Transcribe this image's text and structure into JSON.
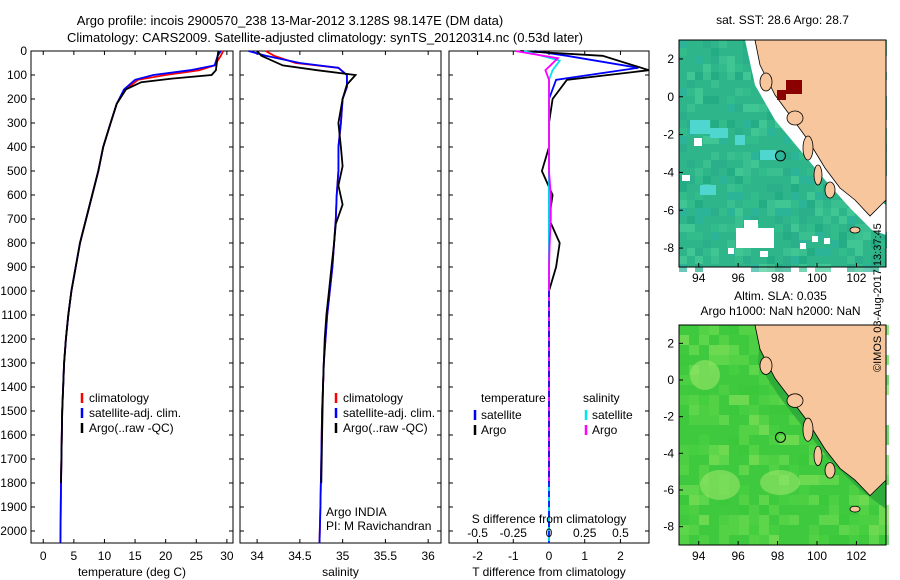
{
  "header": {
    "line1": "Argo profile: incois 2900570_238 13-Mar-2012 3.128S 98.147E (DM data)",
    "line2": "Climatology: CARS2009. Satellite-adjusted climatology: synTS_20120314.nc (0.53d later)"
  },
  "credit": "©IMOS 03-Aug-2017 13:37:45",
  "colors": {
    "climatology": "#ff0000",
    "satellite": "#0000ff",
    "argo": "#000000",
    "sat_s": "#00e5ee",
    "argo_s": "#ff00ff",
    "land": "#f7c69c"
  },
  "chart_data": [
    {
      "type": "line",
      "xlabel": "temperature (deg C)",
      "x_ticks": [
        "0",
        "5",
        "10",
        "15",
        "20",
        "25",
        "30"
      ],
      "xlim": [
        -2,
        31
      ],
      "ylim": [
        2050,
        0
      ],
      "y_ticks": [
        "0",
        "100",
        "200",
        "300",
        "400",
        "500",
        "600",
        "700",
        "800",
        "900",
        "1000",
        "1100",
        "1200",
        "1300",
        "1400",
        "1500",
        "1600",
        "1700",
        "1800",
        "1900",
        "2000"
      ],
      "legend": [
        "climatology",
        "satellite-adj. clim.",
        "Argo(..raw -QC)"
      ],
      "series": [
        {
          "name": "climatology",
          "color": "#ff0000",
          "x": [
            29.4,
            29.0,
            28.0,
            25.5,
            20.0,
            15.5,
            13.5,
            12.0,
            11.0,
            9.8,
            9.0,
            8.0,
            7.0,
            6.0,
            5.3,
            4.6,
            4.1,
            3.7,
            3.4,
            3.1,
            2.9,
            2.8
          ],
          "y": [
            0,
            20,
            60,
            80,
            100,
            120,
            160,
            220,
            300,
            400,
            500,
            600,
            700,
            800,
            900,
            1000,
            1100,
            1200,
            1300,
            1500,
            1800,
            2050
          ]
        },
        {
          "name": "satellite-adj. clim.",
          "color": "#0000ff",
          "x": [
            29.0,
            28.5,
            28.0,
            24.0,
            18.0,
            15.0,
            13.2,
            12.0,
            11.0,
            9.8,
            9.0,
            8.0,
            7.0,
            6.0,
            5.3,
            4.6,
            4.1,
            3.7,
            3.4,
            3.1,
            2.9,
            2.8
          ],
          "y": [
            0,
            20,
            60,
            80,
            100,
            120,
            160,
            220,
            300,
            400,
            500,
            600,
            700,
            800,
            900,
            1000,
            1100,
            1200,
            1300,
            1500,
            1800,
            2050
          ]
        },
        {
          "name": "Argo(..raw -QC)",
          "color": "#000000",
          "x": [
            28.6,
            28.4,
            28.2,
            27.5,
            21.0,
            16.0,
            13.5,
            12.0,
            11.0,
            9.8,
            9.0,
            8.0,
            7.0,
            6.0,
            5.3,
            4.6,
            4.1,
            3.7,
            3.4,
            3.1,
            2.9
          ],
          "y": [
            0,
            40,
            80,
            100,
            115,
            130,
            160,
            220,
            300,
            400,
            500,
            600,
            700,
            800,
            900,
            1000,
            1100,
            1200,
            1300,
            1500,
            1800
          ]
        }
      ]
    },
    {
      "type": "line",
      "xlabel": "salinity",
      "x_ticks": [
        "34",
        "34.5",
        "35",
        "35.5",
        "36"
      ],
      "xlim": [
        33.8,
        36.15
      ],
      "ylim": [
        2050,
        0
      ],
      "legend": [
        "climatology",
        "satellite-adj. clim.",
        "Argo(..raw -QC)"
      ],
      "annotation": [
        "Argo INDIA",
        "PI: M Ravichandran"
      ],
      "series": [
        {
          "name": "climatology",
          "color": "#ff0000",
          "x": [
            34.1,
            34.2,
            34.45,
            34.95,
            35.05,
            35.05,
            35.0,
            34.98,
            34.95,
            34.95,
            34.93,
            34.92,
            34.9,
            34.88,
            34.85,
            34.82,
            34.8,
            34.78,
            34.77,
            34.76,
            34.75,
            34.74,
            34.73
          ],
          "y": [
            0,
            20,
            50,
            70,
            100,
            150,
            200,
            300,
            400,
            500,
            600,
            700,
            800,
            900,
            1000,
            1100,
            1200,
            1300,
            1400,
            1500,
            1700,
            1900,
            2050
          ]
        },
        {
          "name": "satellite-adj. clim.",
          "color": "#0000ff",
          "x": [
            33.9,
            34.1,
            34.5,
            34.95,
            35.05,
            35.05,
            35.0,
            34.98,
            34.95,
            34.95,
            34.93,
            34.92,
            34.9,
            34.88,
            34.85,
            34.82,
            34.8,
            34.78,
            34.77,
            34.76,
            34.75,
            34.74,
            34.73
          ],
          "y": [
            0,
            20,
            50,
            70,
            100,
            150,
            200,
            300,
            400,
            500,
            600,
            700,
            800,
            900,
            1000,
            1100,
            1200,
            1300,
            1400,
            1500,
            1700,
            1900,
            2050
          ]
        },
        {
          "name": "Argo(..raw -QC)",
          "color": "#000000",
          "x": [
            34.0,
            34.05,
            34.3,
            34.7,
            35.15,
            35.05,
            35.0,
            34.95,
            34.98,
            35.0,
            34.95,
            35.0,
            34.92,
            34.9,
            34.87,
            34.84,
            34.81,
            34.79,
            34.78,
            34.77,
            34.76,
            34.75
          ],
          "y": [
            0,
            20,
            60,
            80,
            100,
            140,
            200,
            300,
            400,
            480,
            560,
            640,
            720,
            800,
            900,
            1000,
            1100,
            1200,
            1300,
            1400,
            1600,
            1800
          ]
        }
      ]
    },
    {
      "type": "line",
      "xlabel": "T difference from climatology",
      "x_ticks": [
        "-2",
        "-1",
        "0",
        "1",
        "2"
      ],
      "xlim": [
        -2.8,
        2.8
      ],
      "x2label": "S difference from climatology",
      "x2_ticks": [
        "-0.5",
        "-0.25",
        "0",
        "0.25",
        "0.5"
      ],
      "x2lim": [
        -0.7,
        0.7
      ],
      "ylim": [
        2050,
        0
      ],
      "legend_headers": [
        "temperature",
        "salinity"
      ],
      "legend": [
        "satellite",
        "Argo",
        "satellite",
        "Argo"
      ],
      "series": [
        {
          "name": "satellite",
          "color": "#0000ff",
          "x": [
            -0.4,
            0.5,
            2.5,
            0.2,
            0,
            0,
            0,
            0,
            0,
            0,
            0,
            0,
            0,
            0,
            0
          ],
          "y": [
            0,
            20,
            70,
            120,
            200,
            300,
            400,
            500,
            600,
            700,
            800,
            900,
            1000,
            1500,
            2050
          ]
        },
        {
          "name": "Argo",
          "color": "#000000",
          "x": [
            -0.8,
            1.5,
            2.8,
            0.5,
            0.1,
            0,
            0,
            -0.2,
            0.1,
            0,
            0.3,
            0.2,
            0,
            0,
            0
          ],
          "y": [
            0,
            20,
            80,
            120,
            200,
            300,
            400,
            500,
            600,
            700,
            800,
            900,
            1000,
            1500,
            1800
          ]
        },
        {
          "name": "satellite",
          "color": "#00e5ee",
          "x": [
            -0.7,
            0.3,
            0.1,
            0,
            0,
            0,
            0,
            0,
            0,
            0,
            0,
            0,
            0,
            0,
            0
          ],
          "y": [
            0,
            40,
            80,
            120,
            200,
            300,
            400,
            500,
            600,
            700,
            800,
            900,
            1000,
            1500,
            2050
          ]
        },
        {
          "name": "Argo",
          "color": "#ff00ff",
          "x": [
            -0.95,
            0.25,
            -0.1,
            0,
            0,
            0,
            0,
            0,
            0.05,
            0.05,
            0.02,
            0,
            0,
            0,
            0
          ],
          "y": [
            0,
            30,
            80,
            120,
            200,
            300,
            400,
            500,
            600,
            700,
            800,
            900,
            1000,
            1500,
            1800
          ]
        }
      ]
    },
    {
      "type": "heatmap",
      "title": "sat. SST: 28.6 Argo: 28.7",
      "x_ticks": [
        "94",
        "96",
        "98",
        "100",
        "102"
      ],
      "y_ticks": [
        "2",
        "0",
        "-2",
        "-4",
        "-6",
        "-8"
      ],
      "xlim": [
        93,
        103.5
      ],
      "ylim": [
        -9,
        3
      ],
      "profile_marker": {
        "lon": 98.147,
        "lat": -3.128
      }
    },
    {
      "type": "heatmap",
      "title_lines": [
        "Altim. SLA: 0.035",
        "Argo h1000: NaN h2000: NaN"
      ],
      "x_ticks": [
        "94",
        "96",
        "98",
        "100",
        "102"
      ],
      "y_ticks": [
        "2",
        "0",
        "-2",
        "-4",
        "-6",
        "-8"
      ],
      "xlim": [
        93,
        103.5
      ],
      "ylim": [
        -9,
        3
      ],
      "profile_marker": {
        "lon": 98.147,
        "lat": -3.128
      }
    }
  ]
}
